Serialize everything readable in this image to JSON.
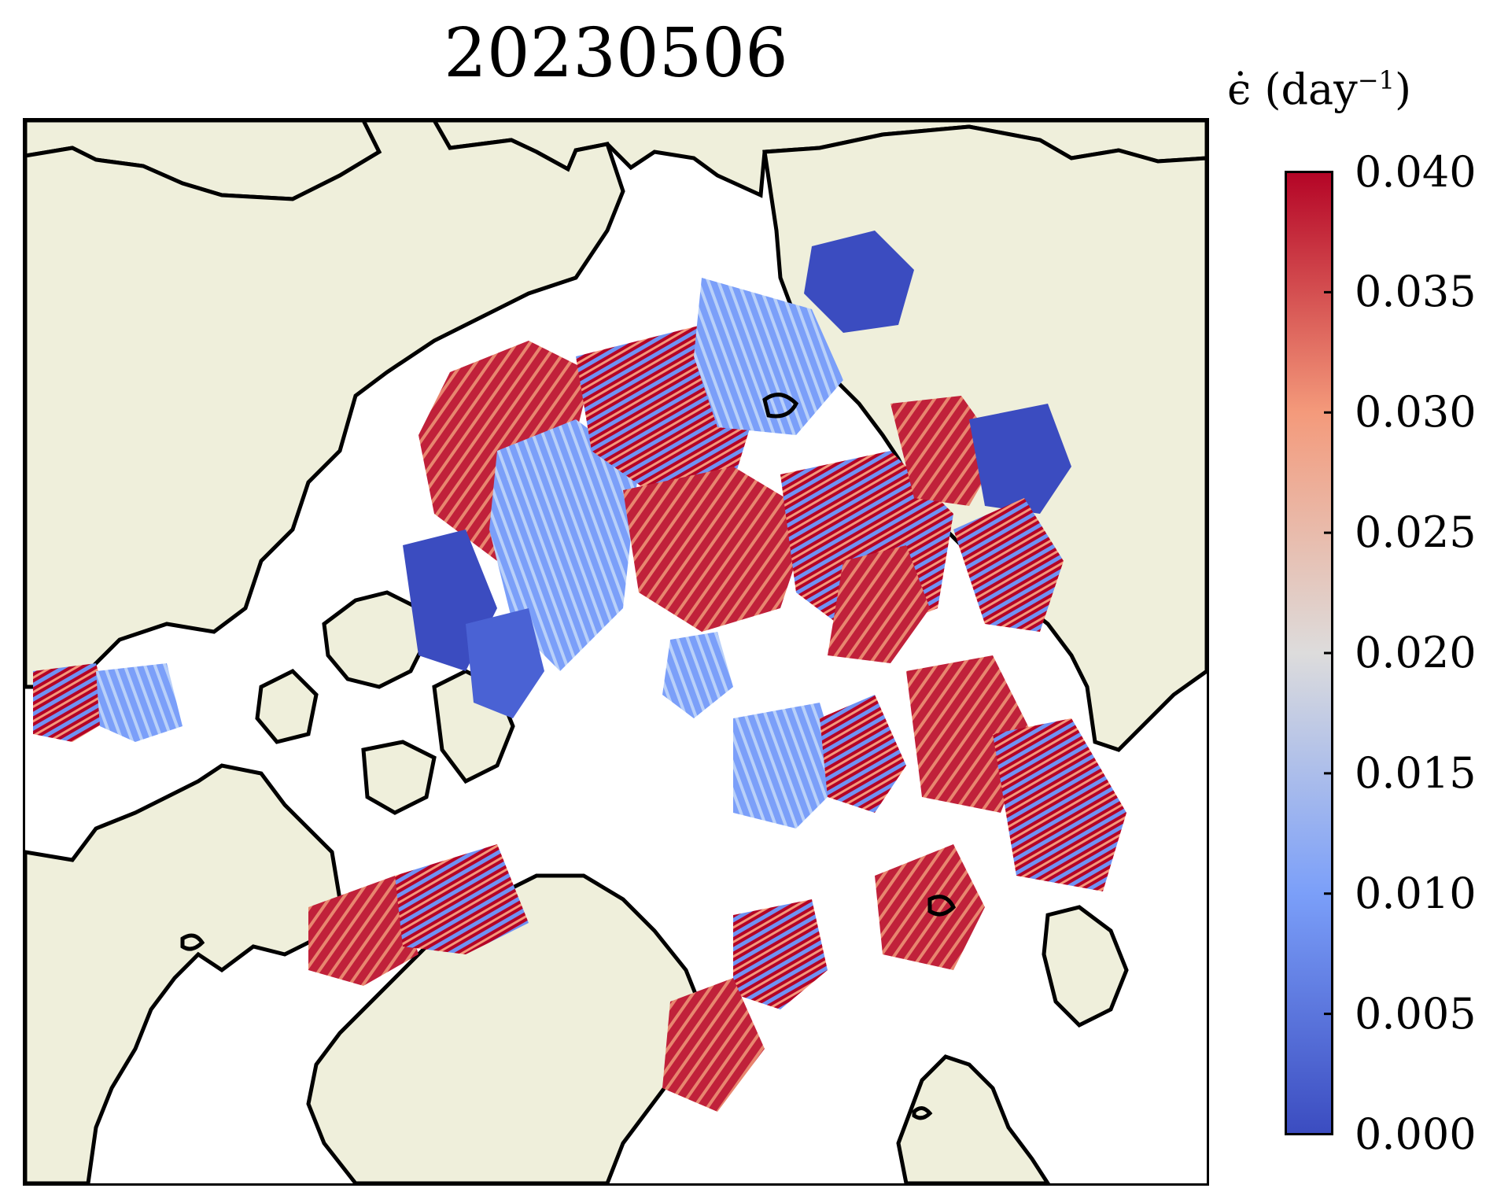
{
  "title": "20230506",
  "colorbar": {
    "label_symbol": "ϵ̇",
    "label_unit": "(day",
    "label_exponent": "−1",
    "label_close": ")",
    "min": 0.0,
    "max": 0.04,
    "ticks": [
      "0.000",
      "0.005",
      "0.010",
      "0.015",
      "0.020",
      "0.025",
      "0.030",
      "0.035",
      "0.040"
    ],
    "colormap": "coolwarm",
    "color_low": "#3b4cc0",
    "color_mid": "#dddcdc",
    "color_high": "#b40426"
  },
  "map": {
    "projection": "north-polar-stereographic",
    "land_color": "#efefdb",
    "ocean_color": "#ffffff",
    "coastline_color": "#000000"
  }
}
